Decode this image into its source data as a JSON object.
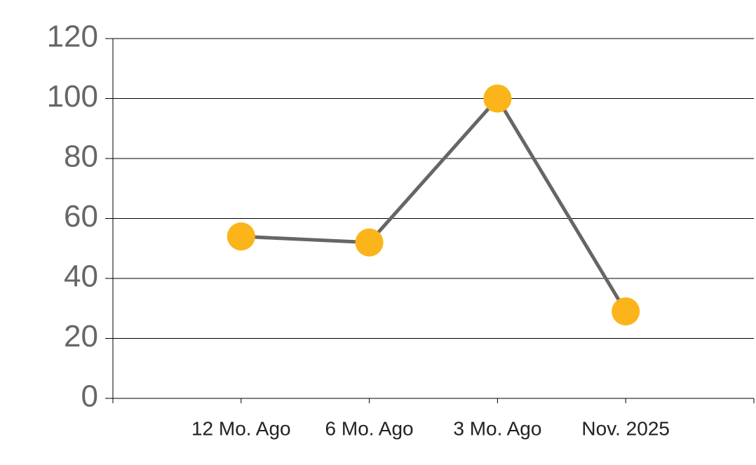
{
  "chart_data": {
    "type": "line",
    "categories": [
      "12 Mo. Ago",
      "6 Mo. Ago",
      "3 Mo. Ago",
      "Nov. 2025"
    ],
    "values": [
      54,
      52,
      100,
      29
    ],
    "line_color": "#666666",
    "marker_color": "#fbb41a",
    "ylim": [
      0,
      120
    ],
    "yticks": [
      0,
      20,
      40,
      60,
      80,
      100,
      120
    ],
    "grid": true
  }
}
